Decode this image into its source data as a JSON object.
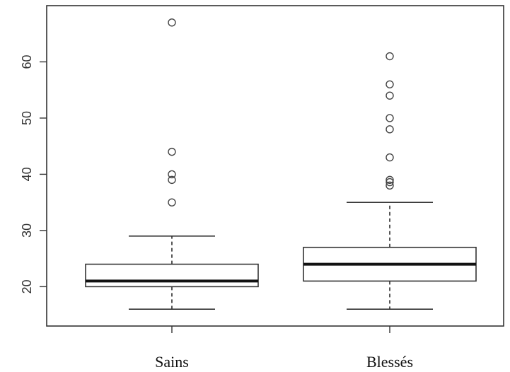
{
  "chart_data": {
    "type": "boxplot",
    "title": "",
    "xlabel": "",
    "ylabel": "",
    "ylim": [
      13,
      70
    ],
    "yticks": [
      20,
      30,
      40,
      50,
      60
    ],
    "grid": false,
    "categories": [
      "Sains",
      "Blessés"
    ],
    "boxes": [
      {
        "category": "Sains",
        "whisker_low": 16,
        "q1": 20,
        "median": 21,
        "q3": 24,
        "whisker_high": 29,
        "outliers": [
          35,
          39,
          40,
          44,
          67
        ]
      },
      {
        "category": "Blessés",
        "whisker_low": 16,
        "q1": 21,
        "median": 24,
        "q3": 27,
        "whisker_high": 35,
        "outliers": [
          38,
          38.6,
          39,
          43,
          48,
          50,
          54,
          56,
          61
        ]
      }
    ]
  }
}
